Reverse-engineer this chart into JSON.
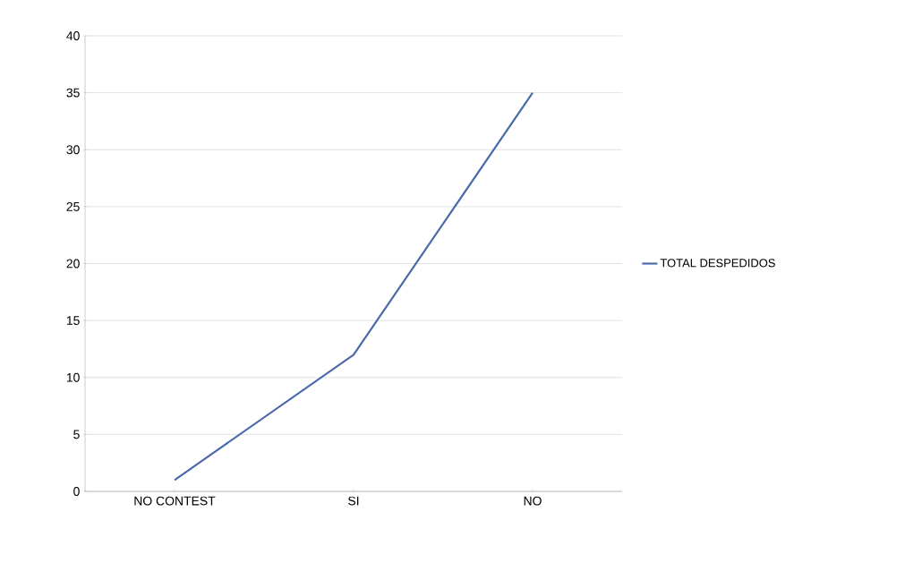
{
  "chart_data": {
    "type": "line",
    "categories": [
      "NO CONTEST",
      "SI",
      "NO"
    ],
    "series": [
      {
        "name": "TOTAL DESPEDIDOS",
        "color": "#4a6aac",
        "values": [
          1,
          12,
          35
        ]
      }
    ],
    "ylim": [
      0,
      40
    ],
    "yticks": [
      0,
      5,
      10,
      15,
      20,
      25,
      30,
      35,
      40
    ],
    "grid": "y",
    "legend": "right",
    "marker": "none"
  }
}
